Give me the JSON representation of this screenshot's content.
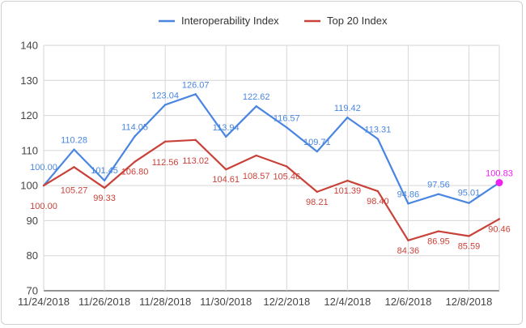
{
  "chart_data": {
    "type": "line",
    "title": "",
    "xlabel": "",
    "ylabel": "",
    "ylim": [
      70,
      140
    ],
    "yticks": [
      70,
      80,
      90,
      100,
      110,
      120,
      130,
      140
    ],
    "x_tick_labels": [
      "11/24/2018",
      "11/26/2018",
      "11/28/2018",
      "11/30/2018",
      "12/2/2018",
      "12/4/2018",
      "12/6/2018",
      "12/8/2018"
    ],
    "x": [
      "11/24/2018",
      "11/25/2018",
      "11/26/2018",
      "11/27/2018",
      "11/28/2018",
      "11/29/2018",
      "11/30/2018",
      "12/1/2018",
      "12/2/2018",
      "12/3/2018",
      "12/4/2018",
      "12/5/2018",
      "12/6/2018",
      "12/7/2018",
      "12/8/2018",
      "12/9/2018"
    ],
    "grid": true,
    "legend_position": "top",
    "series": [
      {
        "name": "Interoperability Index",
        "color": "#4a86e0",
        "values": [
          100.0,
          110.28,
          101.45,
          114.05,
          123.04,
          126.07,
          113.94,
          122.62,
          116.57,
          109.71,
          119.42,
          113.31,
          94.86,
          97.56,
          95.01,
          100.83
        ],
        "labels": [
          "100.00",
          "110.28",
          "101.45",
          "114.05",
          "123.04",
          "126.07",
          "113.94",
          "122.62",
          "116.57",
          "109.71",
          "119.42",
          "113.31",
          "94.86",
          "97.56",
          "95.01",
          "100.83"
        ]
      },
      {
        "name": "Top 20 Index",
        "color": "#c9423a",
        "values": [
          100.0,
          105.27,
          99.33,
          106.8,
          112.56,
          113.02,
          104.61,
          108.57,
          105.46,
          98.21,
          101.39,
          98.4,
          84.36,
          86.95,
          85.59,
          90.46
        ],
        "labels": [
          "100.00",
          "105.27",
          "99.33",
          "106.80",
          "112.56",
          "113.02",
          "104.61",
          "108.57",
          "105.46",
          "98.21",
          "101.39",
          "98.40",
          "84.36",
          "86.95",
          "85.59",
          "90.46"
        ]
      }
    ],
    "highlight": {
      "series": 0,
      "index": 15,
      "color": "#ee22ee"
    }
  }
}
